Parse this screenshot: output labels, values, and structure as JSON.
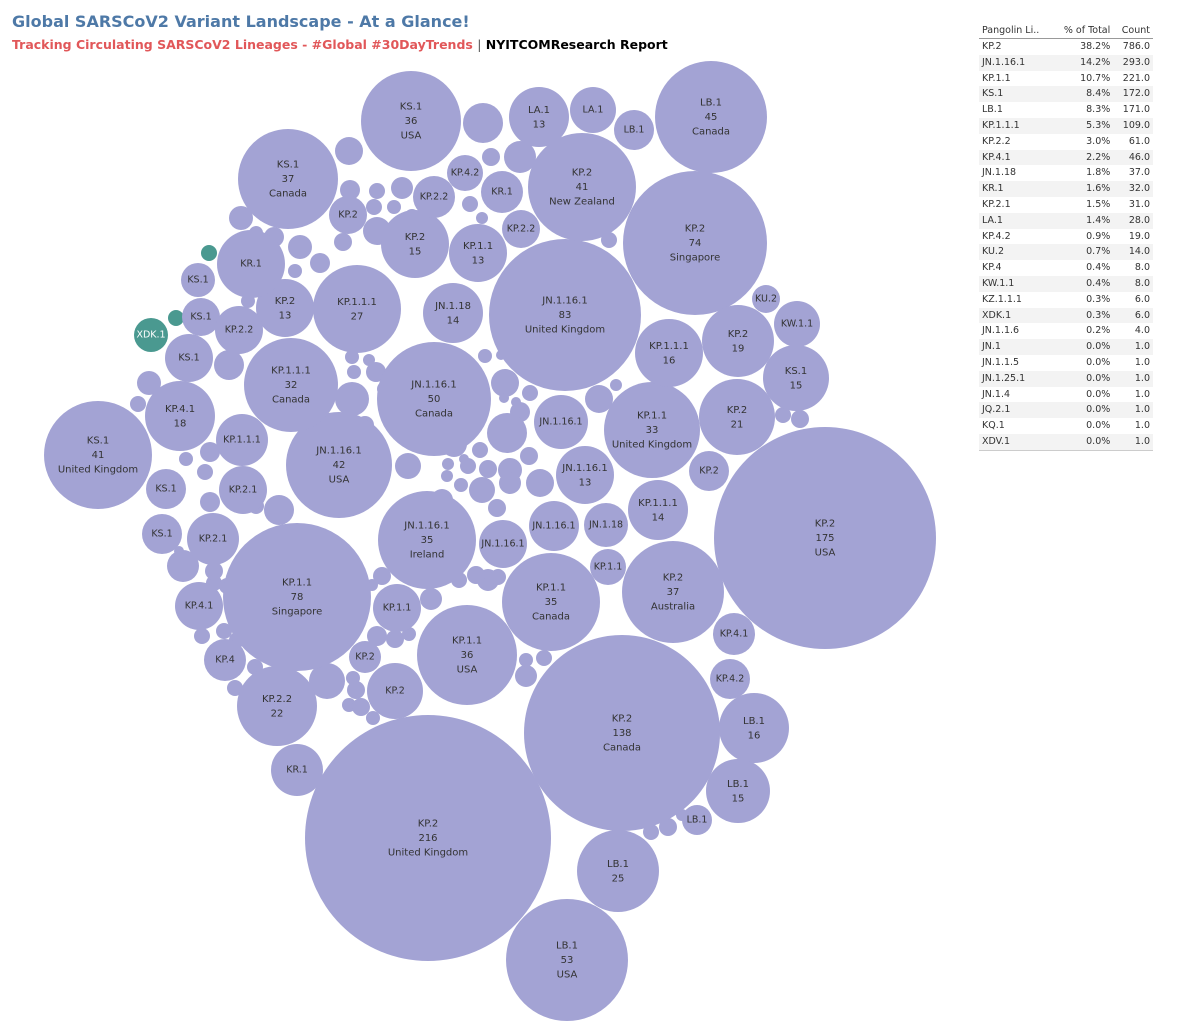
{
  "header": {
    "title": "Global SARSCoV2 Variant Landscape - At a Glance!",
    "subtitle_part1": "Tracking Circulating SARSCoV2 Lineages - #Global #30DayTrends",
    "subtitle_sep": "|",
    "subtitle_part2": "NYITCOMResearch Report"
  },
  "colors": {
    "bubble": "#a3a3d4",
    "highlight": "#4a9990",
    "title": "#4e79a7",
    "subtitle_red": "#e15759"
  },
  "table": {
    "columns": [
      "Pangolin Li..",
      "% of Total",
      "Count"
    ],
    "rows": [
      [
        "KP.2",
        "38.2%",
        "786.0"
      ],
      [
        "JN.1.16.1",
        "14.2%",
        "293.0"
      ],
      [
        "KP.1.1",
        "10.7%",
        "221.0"
      ],
      [
        "KS.1",
        "8.4%",
        "172.0"
      ],
      [
        "LB.1",
        "8.3%",
        "171.0"
      ],
      [
        "KP.1.1.1",
        "5.3%",
        "109.0"
      ],
      [
        "KP.2.2",
        "3.0%",
        "61.0"
      ],
      [
        "KP.4.1",
        "2.2%",
        "46.0"
      ],
      [
        "JN.1.18",
        "1.8%",
        "37.0"
      ],
      [
        "KR.1",
        "1.6%",
        "32.0"
      ],
      [
        "KP.2.1",
        "1.5%",
        "31.0"
      ],
      [
        "LA.1",
        "1.4%",
        "28.0"
      ],
      [
        "KP.4.2",
        "0.9%",
        "19.0"
      ],
      [
        "KU.2",
        "0.7%",
        "14.0"
      ],
      [
        "KP.4",
        "0.4%",
        "8.0"
      ],
      [
        "KW.1.1",
        "0.4%",
        "8.0"
      ],
      [
        "KZ.1.1.1",
        "0.3%",
        "6.0"
      ],
      [
        "XDK.1",
        "0.3%",
        "6.0"
      ],
      [
        "JN.1.1.6",
        "0.2%",
        "4.0"
      ],
      [
        "JN.1",
        "0.0%",
        "1.0"
      ],
      [
        "JN.1.1.5",
        "0.0%",
        "1.0"
      ],
      [
        "JN.1.25.1",
        "0.0%",
        "1.0"
      ],
      [
        "JN.1.4",
        "0.0%",
        "1.0"
      ],
      [
        "JQ.2.1",
        "0.0%",
        "1.0"
      ],
      [
        "KQ.1",
        "0.0%",
        "1.0"
      ],
      [
        "XDV.1",
        "0.0%",
        "1.0"
      ]
    ]
  },
  "chart_data": {
    "type": "packed-bubble",
    "size_measure": "Count",
    "color_measure": "Pangolin Lineage",
    "labeled_bubbles": [
      {
        "lineage": "KP.2",
        "count": 216,
        "country": "United Kingdom"
      },
      {
        "lineage": "KP.2",
        "count": 175,
        "country": "USA"
      },
      {
        "lineage": "KP.2",
        "count": 138,
        "country": "Canada"
      },
      {
        "lineage": "JN.1.16.1",
        "count": 83,
        "country": "United Kingdom"
      },
      {
        "lineage": "KP.1.1",
        "count": 78,
        "country": "Singapore"
      },
      {
        "lineage": "KP.2",
        "count": 74,
        "country": "Singapore"
      },
      {
        "lineage": "LB.1",
        "count": 53,
        "country": "USA"
      },
      {
        "lineage": "JN.1.16.1",
        "count": 50,
        "country": "Canada"
      },
      {
        "lineage": "LB.1",
        "count": 45,
        "country": "Canada"
      },
      {
        "lineage": "JN.1.16.1",
        "count": 42,
        "country": "USA"
      },
      {
        "lineage": "KP.2",
        "count": 41,
        "country": "New Zealand"
      },
      {
        "lineage": "KS.1",
        "count": 41,
        "country": "United Kingdom"
      },
      {
        "lineage": "KS.1",
        "count": 37,
        "country": "Canada"
      },
      {
        "lineage": "KP.2",
        "count": 37,
        "country": "Australia"
      },
      {
        "lineage": "KS.1",
        "count": 36,
        "country": "USA"
      },
      {
        "lineage": "KP.1.1",
        "count": 36,
        "country": "USA"
      },
      {
        "lineage": "JN.1.16.1",
        "count": 35,
        "country": "Ireland"
      },
      {
        "lineage": "KP.1.1",
        "count": 35,
        "country": "Canada"
      },
      {
        "lineage": "KP.1.1",
        "count": 33,
        "country": "United Kingdom"
      },
      {
        "lineage": "KP.1.1.1",
        "count": 32,
        "country": "Canada"
      },
      {
        "lineage": "KP.1.1.1",
        "count": 27,
        "country": ""
      },
      {
        "lineage": "LB.1",
        "count": 25,
        "country": ""
      },
      {
        "lineage": "KP.2.2",
        "count": 22,
        "country": ""
      },
      {
        "lineage": "KP.2",
        "count": 21,
        "country": ""
      },
      {
        "lineage": "KP.2",
        "count": 19,
        "country": ""
      },
      {
        "lineage": "KP.4.1",
        "count": 18,
        "country": ""
      },
      {
        "lineage": "LB.1",
        "count": 16,
        "country": ""
      },
      {
        "lineage": "KP.1.1.1",
        "count": 16,
        "country": ""
      },
      {
        "lineage": "KP.2",
        "count": 15,
        "country": ""
      },
      {
        "lineage": "KS.1",
        "count": 15,
        "country": ""
      },
      {
        "lineage": "LB.1",
        "count": 15,
        "country": ""
      },
      {
        "lineage": "JN.1.18",
        "count": 14,
        "country": ""
      },
      {
        "lineage": "KP.1.1.1",
        "count": 14,
        "country": ""
      },
      {
        "lineage": "LA.1",
        "count": 13,
        "country": ""
      },
      {
        "lineage": "KP.1.1",
        "count": 13,
        "country": ""
      },
      {
        "lineage": "KP.2",
        "count": 13,
        "country": ""
      },
      {
        "lineage": "JN.1.16.1",
        "count": 13,
        "country": ""
      }
    ],
    "name_only_bubbles": [
      "LA.1",
      "LB.1",
      "KP.4.2",
      "KP.2.2",
      "KR.1",
      "KP.2.2",
      "KP.2",
      "KR.1",
      "KS.1",
      "KS.1",
      "KP.2.2",
      "KU.2",
      "KW.1.1",
      "KS.1",
      "XDK.1",
      "KP.1.1.1",
      "JN.1.16.1",
      "KP.2",
      "KS.1",
      "KP.2.1",
      "KS.1",
      "KP.2.1",
      "JN.1.16.1",
      "JN.1.18",
      "JN.1.16.1",
      "KP.1.1",
      "KP.4.1",
      "KP.1.1",
      "KP.4.1",
      "KP.2",
      "KP.4",
      "KP.2",
      "KP.4.2",
      "KR.1",
      "LB.1"
    ]
  }
}
